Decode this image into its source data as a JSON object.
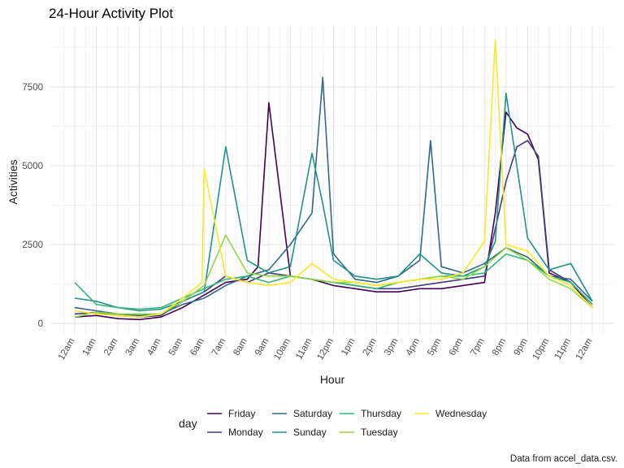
{
  "chart_data": {
    "type": "line",
    "title": "24-Hour Activity Plot",
    "xlabel": "Hour",
    "ylabel": "Activities",
    "caption": "Data from accel_data.csv.",
    "legend_title": "day",
    "legend_position": "bottom",
    "grid": true,
    "xlim": [
      0,
      24
    ],
    "ylim": [
      0,
      9000
    ],
    "x_ticks": [
      0,
      1,
      2,
      3,
      4,
      5,
      6,
      7,
      8,
      9,
      10,
      11,
      12,
      13,
      14,
      15,
      16,
      17,
      18,
      19,
      20,
      21,
      22,
      23,
      24
    ],
    "x_tick_labels": [
      "12am",
      "1am",
      "2am",
      "3am",
      "4am",
      "5am",
      "6am",
      "7am",
      "8am",
      "9am",
      "10am",
      "11am",
      "12pm",
      "1pm",
      "2pm",
      "3pm",
      "4pm",
      "5pm",
      "6pm",
      "7pm",
      "8pm",
      "9pm",
      "10pm",
      "11pm",
      "12am"
    ],
    "y_ticks": [
      0,
      2500,
      5000,
      7500
    ],
    "y_tick_labels": [
      "0",
      "2500",
      "5000",
      "7500"
    ],
    "series": [
      {
        "name": "Friday",
        "color": "#440154",
        "x": [
          0,
          1,
          2,
          3,
          4,
          5,
          6,
          7,
          8,
          8.5,
          9,
          10,
          11,
          12,
          13,
          14,
          15,
          16,
          17,
          18,
          19,
          19.5,
          20,
          20.5,
          21,
          21.5,
          22,
          23,
          24
        ],
        "y": [
          200,
          250,
          150,
          120,
          200,
          500,
          900,
          1300,
          1400,
          1800,
          7000,
          1500,
          1400,
          1200,
          1100,
          1000,
          1000,
          1100,
          1100,
          1200,
          1300,
          3500,
          6700,
          6200,
          6000,
          5200,
          1600,
          1300,
          500
        ]
      },
      {
        "name": "Monday",
        "color": "#443983",
        "x": [
          0,
          1,
          2,
          3,
          4,
          5,
          6,
          7,
          8,
          9,
          10,
          11,
          12,
          13,
          14,
          15,
          16,
          17,
          18,
          19,
          20,
          20.5,
          21,
          21.5,
          22,
          23,
          24
        ],
        "y": [
          300,
          350,
          250,
          200,
          250,
          700,
          1000,
          1500,
          1300,
          1600,
          1500,
          1400,
          1300,
          1200,
          1100,
          1100,
          1200,
          1300,
          1400,
          1500,
          4500,
          5600,
          5800,
          5300,
          1700,
          1300,
          600
        ]
      },
      {
        "name": "Saturday",
        "color": "#31688e",
        "x": [
          0,
          1,
          2,
          3,
          4,
          5,
          6,
          7,
          8,
          9,
          10,
          11,
          11.5,
          12,
          13,
          14,
          15,
          16,
          16.5,
          17,
          18,
          19,
          20,
          21,
          22,
          23,
          24
        ],
        "y": [
          500,
          400,
          300,
          250,
          300,
          600,
          800,
          1200,
          1500,
          1700,
          2500,
          3500,
          7800,
          2200,
          1400,
          1300,
          1500,
          2000,
          5800,
          1800,
          1600,
          1900,
          2400,
          2100,
          1500,
          1400,
          700
        ]
      },
      {
        "name": "Sunday",
        "color": "#21918c",
        "x": [
          0,
          1,
          2,
          3,
          4,
          5,
          6,
          7,
          8,
          9,
          10,
          11,
          11.5,
          12,
          13,
          14,
          15,
          16,
          17,
          18,
          19,
          19.5,
          20,
          21,
          22,
          23,
          24
        ],
        "y": [
          800,
          700,
          500,
          400,
          450,
          700,
          1000,
          5600,
          2000,
          1600,
          1800,
          5400,
          3800,
          2000,
          1500,
          1400,
          1500,
          2200,
          1600,
          1500,
          1800,
          2600,
          7300,
          2700,
          1700,
          1900,
          700
        ]
      },
      {
        "name": "Thursday",
        "color": "#35b779",
        "x": [
          0,
          1,
          2,
          3,
          4,
          5,
          6,
          7,
          8,
          9,
          10,
          11,
          12,
          13,
          14,
          15,
          16,
          17,
          18,
          19,
          20,
          21,
          22,
          23,
          24
        ],
        "y": [
          1300,
          600,
          500,
          450,
          500,
          800,
          1100,
          1400,
          1500,
          1300,
          1500,
          1400,
          1300,
          1200,
          1100,
          1300,
          1400,
          1500,
          1500,
          1600,
          2200,
          2000,
          1500,
          1300,
          600
        ]
      },
      {
        "name": "Tuesday",
        "color": "#90d743",
        "x": [
          0,
          1,
          2,
          3,
          4,
          5,
          6,
          7,
          8,
          9,
          10,
          11,
          12,
          13,
          14,
          15,
          16,
          17,
          18,
          19,
          20,
          21,
          22,
          23,
          24
        ],
        "y": [
          200,
          350,
          300,
          300,
          300,
          700,
          1200,
          2800,
          1600,
          1500,
          1500,
          1400,
          1300,
          1300,
          1200,
          1300,
          1400,
          1500,
          1400,
          1800,
          2400,
          2000,
          1400,
          1100,
          500
        ]
      },
      {
        "name": "Wednesday",
        "color": "#fde725",
        "x": [
          0,
          1,
          2,
          3,
          4,
          5,
          5.9,
          6,
          7,
          8,
          9,
          10,
          11,
          12,
          13,
          14,
          15,
          16,
          17,
          18,
          19,
          19.5,
          20,
          21,
          22,
          23,
          24
        ],
        "y": [
          400,
          300,
          250,
          200,
          300,
          800,
          1300,
          4900,
          1500,
          1300,
          1200,
          1300,
          1900,
          1400,
          1300,
          1200,
          1300,
          1400,
          1400,
          1600,
          2600,
          9000,
          2500,
          2300,
          1500,
          1200,
          500
        ]
      }
    ]
  }
}
